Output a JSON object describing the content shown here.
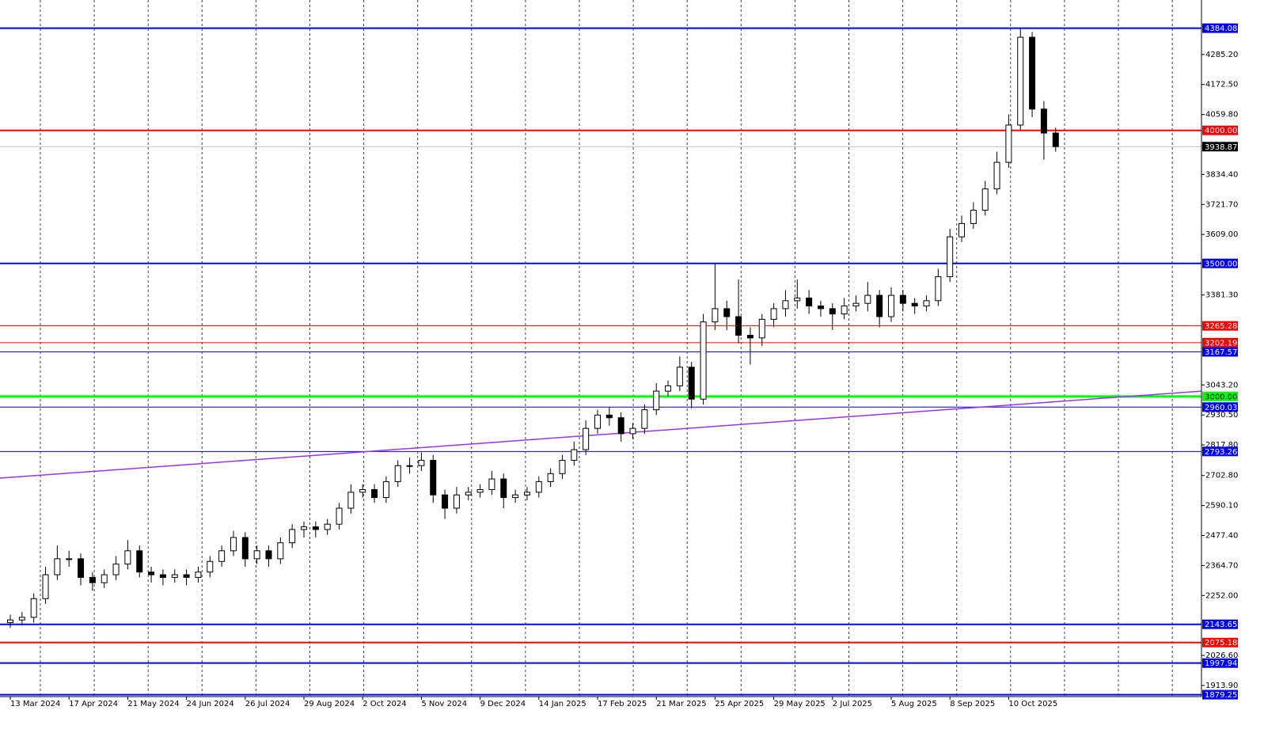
{
  "chart_data": {
    "type": "candlestick",
    "categories": [
      "13 Mar 2024",
      null,
      null,
      null,
      null,
      "17 Apr 2024",
      null,
      null,
      null,
      null,
      "21 May 2024",
      null,
      null,
      null,
      null,
      "24 Jun 2024",
      null,
      null,
      null,
      null,
      "26 Jul 2024",
      null,
      null,
      null,
      null,
      "29 Aug 2024",
      null,
      null,
      null,
      null,
      "2 Oct 2024",
      null,
      null,
      null,
      null,
      "5 Nov 2024",
      null,
      null,
      null,
      null,
      "9 Dec 2024",
      null,
      null,
      null,
      null,
      "14 Jan 2025",
      null,
      null,
      null,
      null,
      "17 Feb 2025",
      null,
      null,
      null,
      null,
      "21 Mar 2025",
      null,
      null,
      null,
      null,
      "25 Apr 2025",
      null,
      null,
      null,
      null,
      "29 May 2025",
      null,
      null,
      null,
      null,
      "2 Jul 2025",
      null,
      null,
      null,
      null,
      "5 Aug 2025",
      null,
      null,
      null,
      null,
      "8 Sep 2025",
      null,
      null,
      null,
      null,
      "10 Oct 2025",
      null,
      null,
      null,
      null
    ],
    "open": [
      2150,
      2160,
      2170,
      2240,
      2330,
      2390,
      2390,
      2320,
      2300,
      2330,
      2370,
      2420,
      2340,
      2330,
      2320,
      2330,
      2320,
      2340,
      2380,
      2420,
      2470,
      2390,
      2420,
      2390,
      2450,
      2500,
      2510,
      2500,
      2520,
      2580,
      2640,
      2650,
      2620,
      2680,
      2740,
      2740,
      2760,
      2630,
      2580,
      2630,
      2640,
      2650,
      2690,
      2620,
      2630,
      2640,
      2680,
      2710,
      2760,
      2800,
      2880,
      2930,
      2920,
      2860,
      2880,
      2950,
      3020,
      3040,
      3110,
      2990,
      3280,
      3330,
      3300,
      3230,
      3220,
      3290,
      3330,
      3360,
      3370,
      3340,
      3330,
      3310,
      3340,
      3350,
      3380,
      3300,
      3380,
      3350,
      3340,
      3360,
      3450,
      3600,
      3650,
      3700,
      3780,
      3880,
      4020,
      4350,
      4080,
      3990
    ],
    "high": [
      2180,
      2190,
      2260,
      2360,
      2440,
      2420,
      2410,
      2340,
      2350,
      2400,
      2460,
      2440,
      2360,
      2350,
      2350,
      2350,
      2360,
      2400,
      2440,
      2495,
      2490,
      2440,
      2440,
      2470,
      2520,
      2530,
      2530,
      2540,
      2600,
      2670,
      2670,
      2670,
      2700,
      2760,
      2770,
      2790,
      2780,
      2650,
      2660,
      2660,
      2670,
      2720,
      2710,
      2650,
      2660,
      2700,
      2730,
      2780,
      2830,
      2910,
      2950,
      2960,
      2940,
      2900,
      2970,
      3050,
      3060,
      3150,
      3130,
      3310,
      3500,
      3360,
      3440,
      3260,
      3310,
      3350,
      3400,
      3440,
      3400,
      3360,
      3350,
      3370,
      3380,
      3430,
      3400,
      3410,
      3400,
      3370,
      3380,
      3480,
      3630,
      3680,
      3730,
      3810,
      3920,
      4060,
      4384.08,
      4370,
      4110,
      4010
    ],
    "low": [
      2130,
      2140,
      2150,
      2220,
      2310,
      2360,
      2290,
      2270,
      2280,
      2310,
      2350,
      2320,
      2300,
      2290,
      2300,
      2290,
      2300,
      2320,
      2360,
      2400,
      2360,
      2370,
      2360,
      2370,
      2430,
      2470,
      2470,
      2480,
      2500,
      2560,
      2620,
      2600,
      2600,
      2660,
      2710,
      2720,
      2600,
      2540,
      2560,
      2610,
      2620,
      2630,
      2580,
      2600,
      2610,
      2620,
      2660,
      2690,
      2740,
      2780,
      2860,
      2890,
      2830,
      2840,
      2860,
      2930,
      3000,
      3020,
      2955,
      2970,
      3250,
      3250,
      3200,
      3120,
      3190,
      3260,
      3300,
      3330,
      3310,
      3300,
      3250,
      3290,
      3320,
      3320,
      3260,
      3280,
      3320,
      3310,
      3320,
      3340,
      3430,
      3580,
      3630,
      3680,
      3760,
      3860,
      4000,
      4050,
      3890,
      3920
    ],
    "close": [
      2160,
      2170,
      2240,
      2330,
      2390,
      2390,
      2320,
      2300,
      2330,
      2370,
      2420,
      2340,
      2330,
      2320,
      2330,
      2320,
      2340,
      2380,
      2420,
      2470,
      2390,
      2420,
      2390,
      2450,
      2500,
      2510,
      2500,
      2520,
      2580,
      2640,
      2650,
      2620,
      2680,
      2740,
      2740,
      2760,
      2630,
      2580,
      2630,
      2640,
      2650,
      2690,
      2620,
      2630,
      2640,
      2680,
      2710,
      2760,
      2800,
      2880,
      2930,
      2920,
      2860,
      2880,
      2950,
      3020,
      3040,
      3110,
      2990,
      3280,
      3330,
      3300,
      3230,
      3220,
      3290,
      3330,
      3360,
      3370,
      3340,
      3330,
      3310,
      3340,
      3350,
      3380,
      3300,
      3380,
      3350,
      3340,
      3360,
      3450,
      3600,
      3650,
      3700,
      3780,
      3880,
      4020,
      4350,
      4080,
      3990,
      3938.87
    ],
    "ylim": [
      1872,
      4490
    ],
    "yticks": [
      {
        "value": 4285.2,
        "label": "4285.20"
      },
      {
        "value": 4172.5,
        "label": "4172.50"
      },
      {
        "value": 4059.8,
        "label": "4059.80"
      },
      {
        "value": 3834.4,
        "label": "3834.40"
      },
      {
        "value": 3721.7,
        "label": "3721.70"
      },
      {
        "value": 3609,
        "label": "3609.00"
      },
      {
        "value": 3381.3,
        "label": "3381.30"
      },
      {
        "value": 3043.2,
        "label": "3043.20"
      },
      {
        "value": 2930.5,
        "label": "2930.50"
      },
      {
        "value": 2817.8,
        "label": "2817.80"
      },
      {
        "value": 2702.8,
        "label": "2702.80"
      },
      {
        "value": 2590.1,
        "label": "2590.10"
      },
      {
        "value": 2477.4,
        "label": "2477.40"
      },
      {
        "value": 2364.7,
        "label": "2364.70"
      },
      {
        "value": 2252,
        "label": "2252.00"
      },
      {
        "value": 2026.6,
        "label": "2026.60"
      },
      {
        "value": 1913.9,
        "label": "1913.90"
      }
    ],
    "levels": [
      {
        "value": 4384.08,
        "label": "4384.08",
        "color": "#0000ff",
        "style": "thick"
      },
      {
        "value": 4000,
        "label": "4000.00",
        "color": "#ff0000",
        "style": "thick"
      },
      {
        "value": 3938.87,
        "label": "3938.87",
        "color": "#000000",
        "style": "price"
      },
      {
        "value": 3500,
        "label": "3500.00",
        "color": "#0000ff",
        "style": "thick"
      },
      {
        "value": 3265.28,
        "label": "3265.28",
        "color": "#ff0000",
        "style": "thin"
      },
      {
        "value": 3202.19,
        "label": "3202.19",
        "color": "#ff0000",
        "style": "thin"
      },
      {
        "value": 3167.57,
        "label": "3167.57",
        "color": "#0000ff",
        "style": "thin"
      },
      {
        "value": 3000,
        "label": "3000.00",
        "color": "#00ff00",
        "style": "heavy"
      },
      {
        "value": 2960.03,
        "label": "2960.03",
        "color": "#0000ff",
        "style": "thin"
      },
      {
        "value": 2793.26,
        "label": "2793.26",
        "color": "#0000ff",
        "style": "thin"
      },
      {
        "value": 2143.65,
        "label": "2143.65",
        "color": "#0000ff",
        "style": "thick"
      },
      {
        "value": 2075.18,
        "label": "2075.18",
        "color": "#ff0000",
        "style": "thick"
      },
      {
        "value": 1997.94,
        "label": "1997.94",
        "color": "#0000ff",
        "style": "thick"
      },
      {
        "value": 1879.25,
        "label": "1879.25",
        "color": "#0000ff",
        "style": "thick"
      }
    ],
    "trendline": {
      "from": 2693,
      "to": 3020,
      "color": "#9933ff"
    },
    "grid": true
  }
}
